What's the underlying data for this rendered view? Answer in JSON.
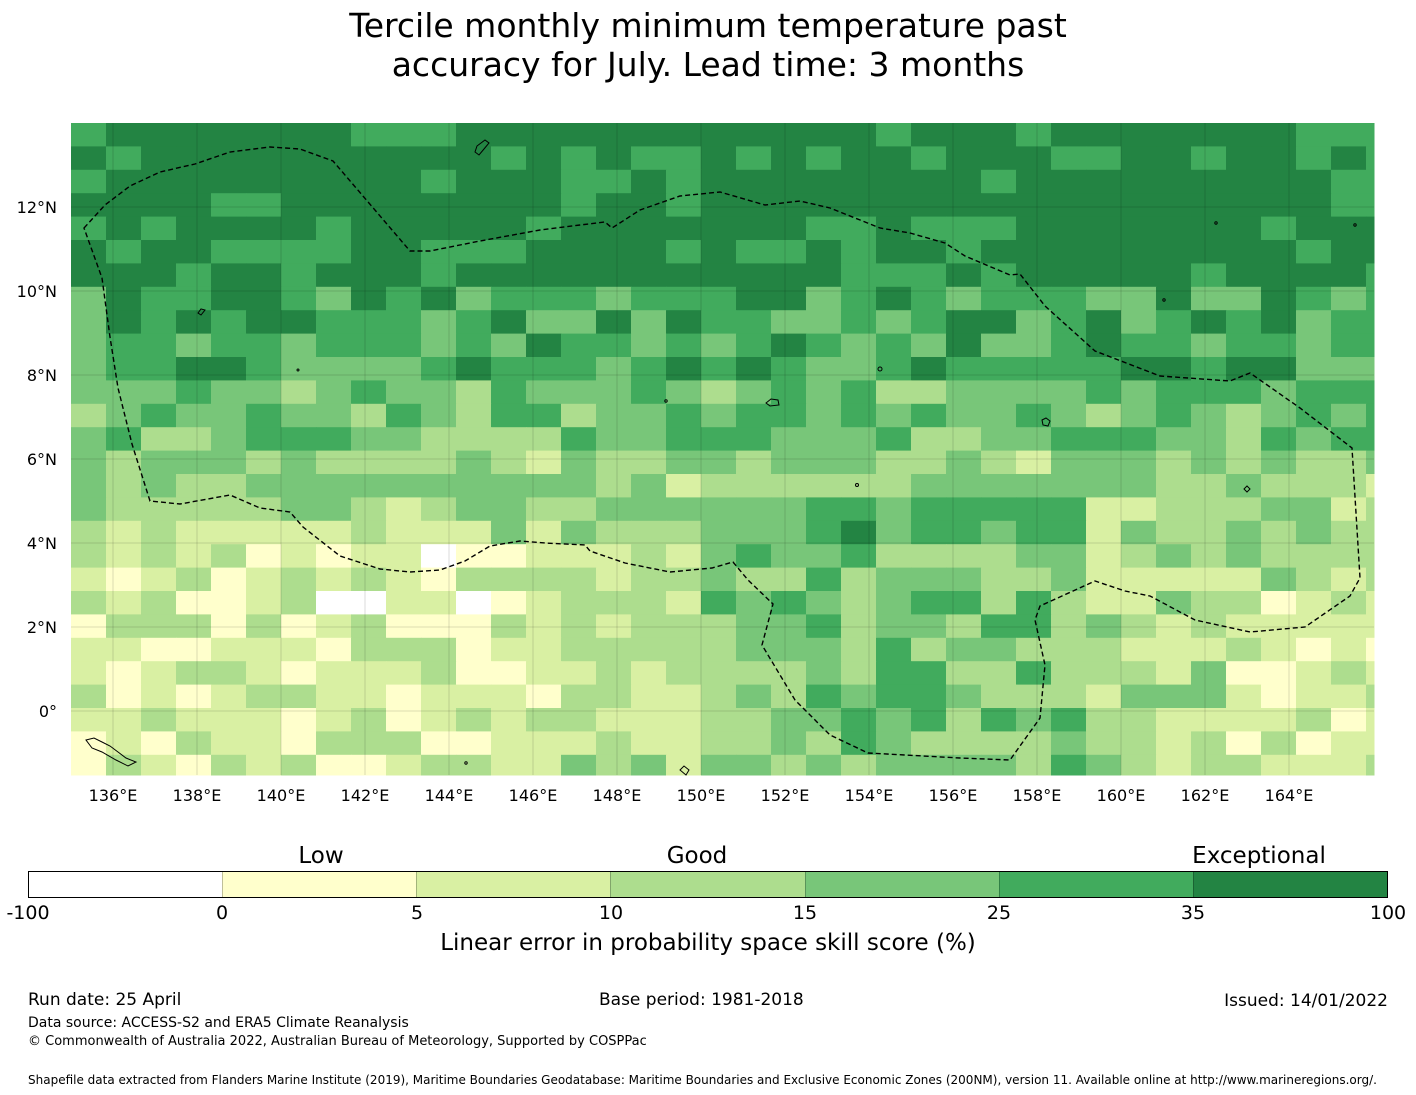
{
  "title_line1": "Tercile monthly minimum temperature past",
  "title_line2": "accuracy for July. Lead time: 3 months",
  "map": {
    "type": "heatmap",
    "lon_range": [
      135,
      166
    ],
    "lat_range": [
      -1.5,
      14
    ],
    "x_ticks": [
      "136°E",
      "138°E",
      "140°E",
      "142°E",
      "144°E",
      "146°E",
      "148°E",
      "150°E",
      "152°E",
      "154°E",
      "156°E",
      "158°E",
      "160°E",
      "162°E",
      "164°E"
    ],
    "y_ticks": [
      "12°N",
      "10°N",
      "8°N",
      "6°N",
      "4°N",
      "2°N",
      "0°"
    ],
    "boundary": "dashed EEZ outline",
    "colors": [
      "#ffffff",
      "#ffffcc",
      "#d9f0a3",
      "#addd8e",
      "#78c679",
      "#41ab5d",
      "#238443"
    ]
  },
  "colorbar": {
    "category_labels": [
      "Low",
      "Good",
      "Exceptional"
    ],
    "ticks": [
      "-100",
      "0",
      "5",
      "10",
      "15",
      "25",
      "35",
      "100"
    ],
    "label": "Linear error in probability space skill score (%)"
  },
  "footer": {
    "run_date": "Run date: 25 April",
    "base_period": "Base period: 1981-2018",
    "issued": "Issued: 14/01/2022",
    "data_source": "Data source: ACCESS-S2 and ERA5 Climate Reanalysis",
    "copyright": "© Commonwealth of Australia 2022, Australian Bureau of Meteorology, Supported by COSPPac",
    "shapefile": "Shapefile data extracted from Flanders Marine Institute (2019), Maritime Boundaries Geodatabase: Maritime Boundaries and Exclusive Economic Zones (200NM), version 11. Available online at http://www.marineregions.org/."
  }
}
